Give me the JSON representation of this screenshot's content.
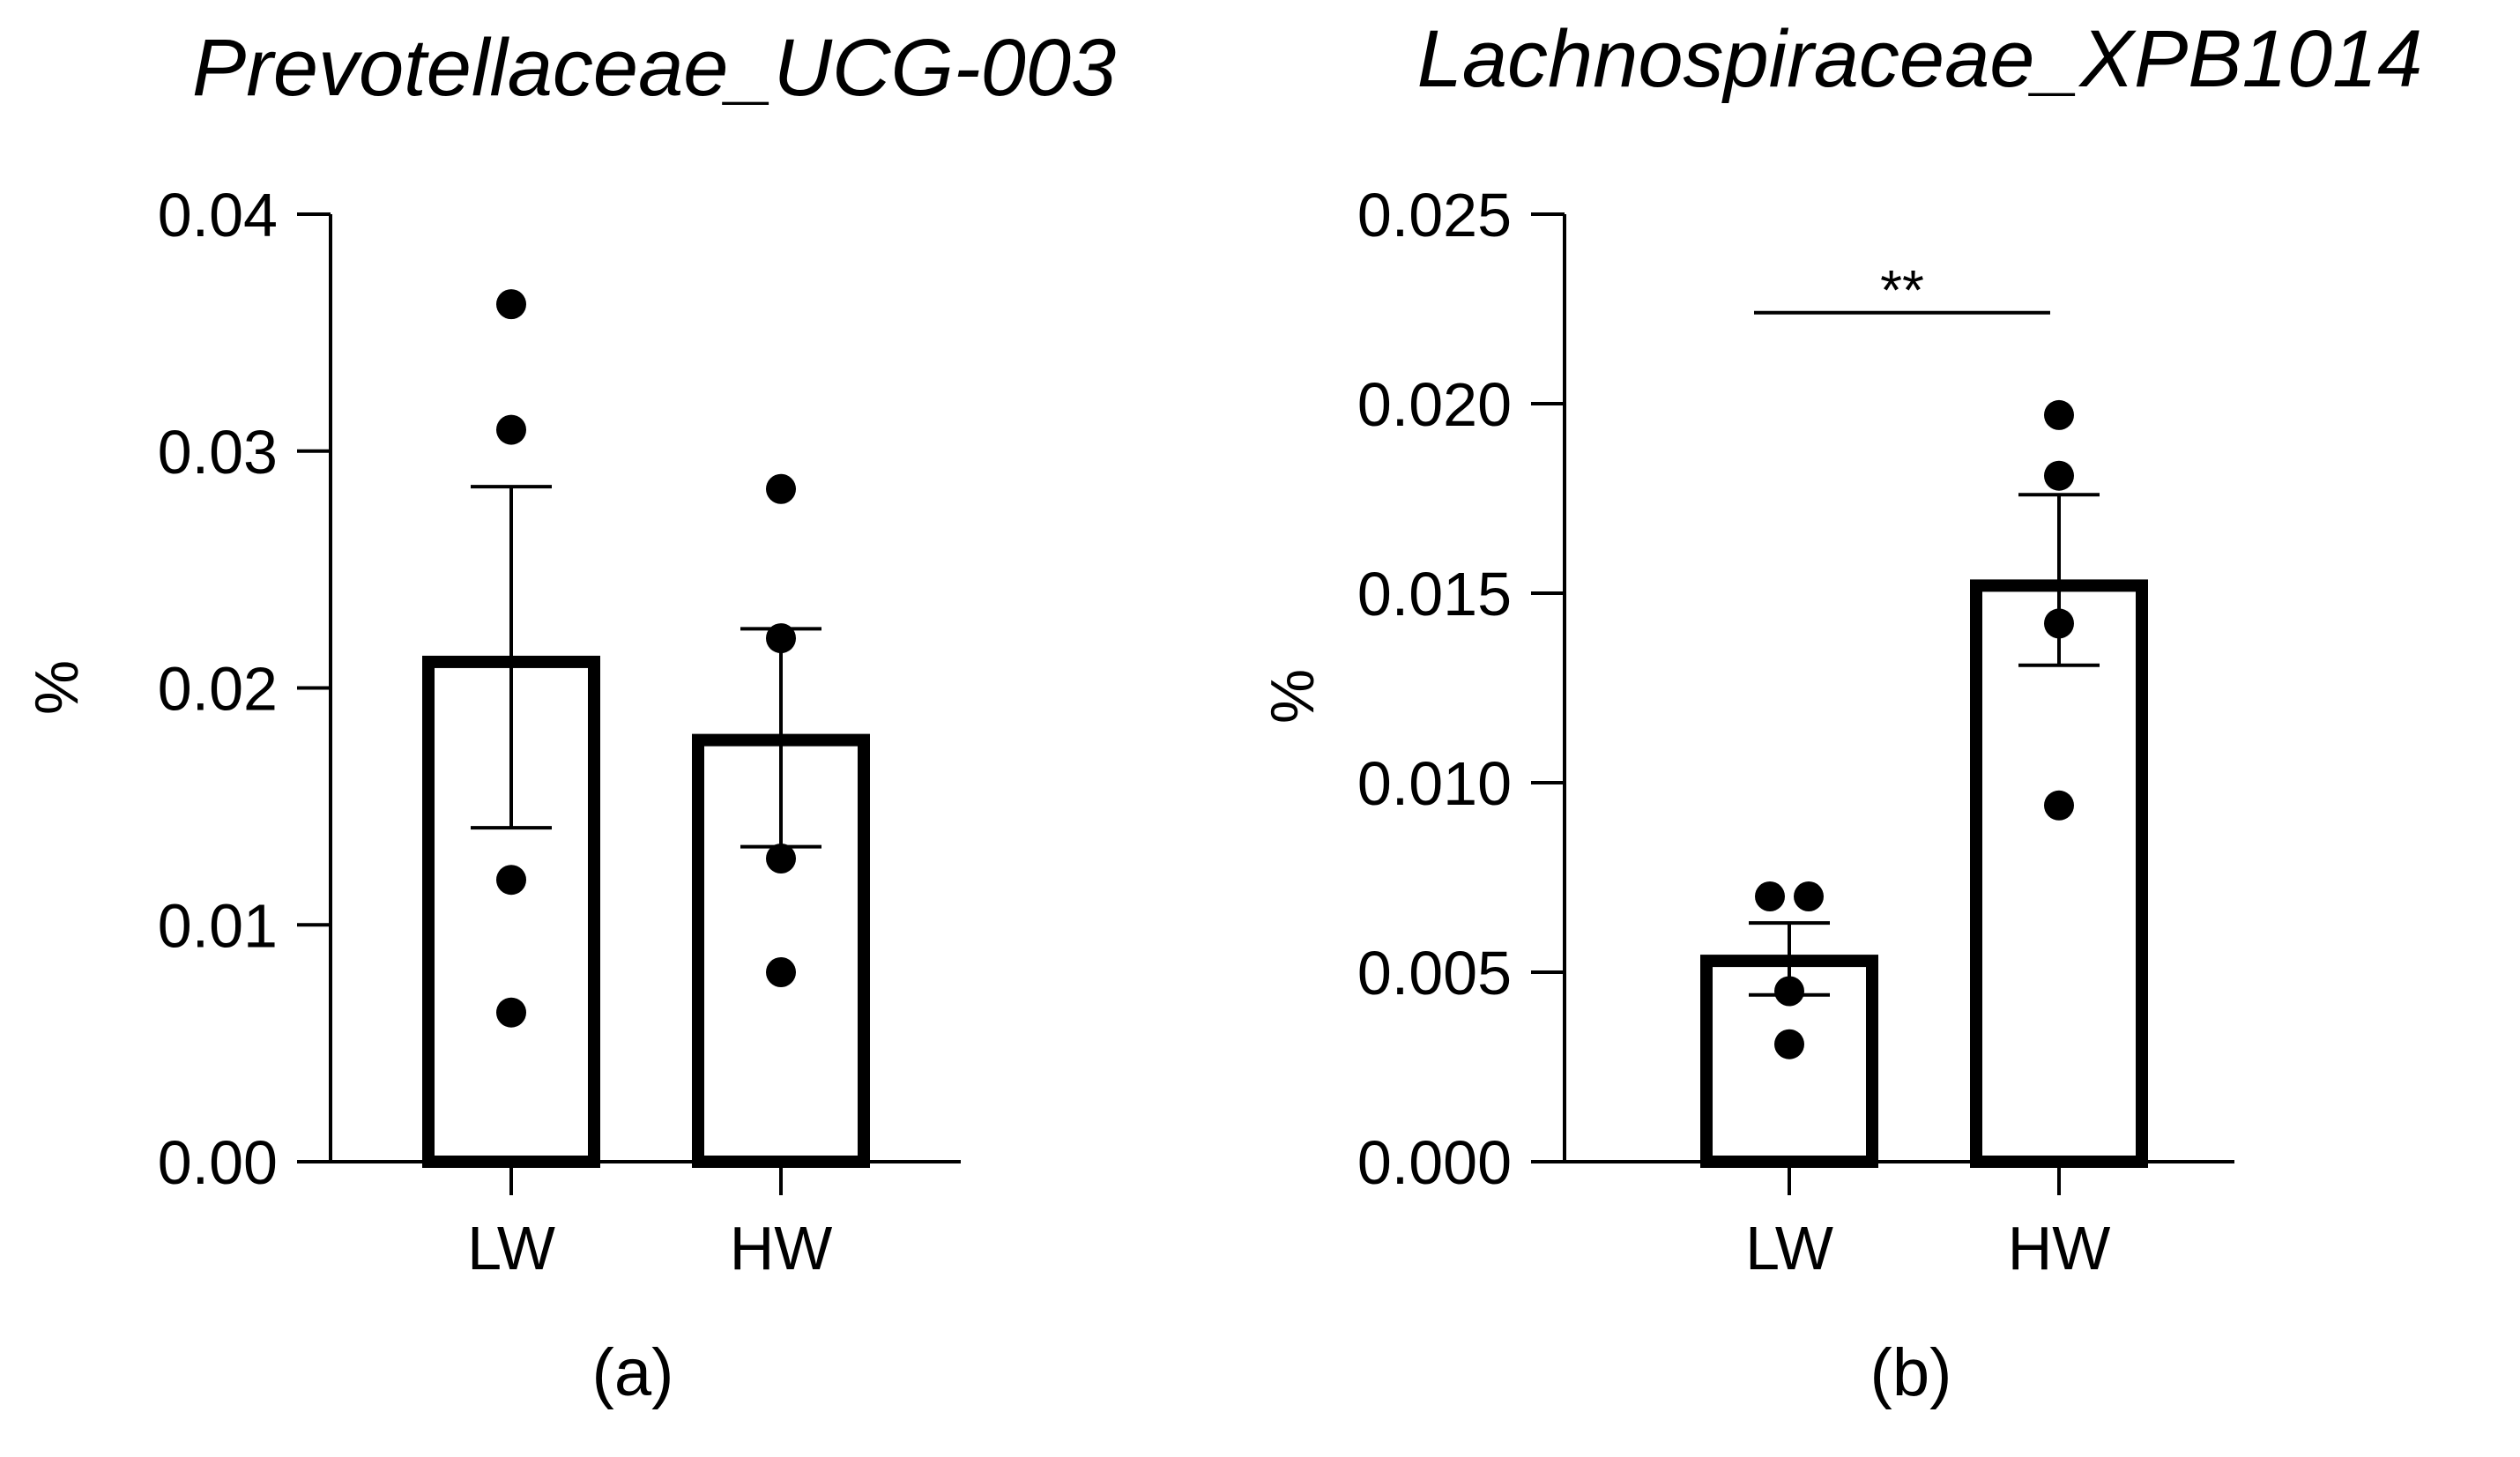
{
  "colors": {
    "ink": "#000000",
    "bar_fill": "#ffffff",
    "background": "#ffffff"
  },
  "chart_data": [
    {
      "type": "bar",
      "panel": "(a)",
      "title": "Prevotellaceae_UCG-003",
      "xlabel": "",
      "ylabel": "%",
      "ylim": [
        0,
        0.04
      ],
      "yticks": [
        0,
        0.01,
        0.02,
        0.03,
        0.04
      ],
      "ytick_labels": [
        "0.00",
        "0.01",
        "0.02",
        "0.03",
        "0.04"
      ],
      "categories": [
        "LW",
        "HW"
      ],
      "values": [
        0.0211,
        0.0178
      ],
      "error_upper": [
        0.0285,
        0.0225
      ],
      "error_lower": [
        0.0141,
        0.0133
      ],
      "points": [
        [
          0.0362,
          0.0309,
          0.0119,
          0.0063
        ],
        [
          0.0284,
          0.0221,
          0.0128,
          0.008
        ]
      ],
      "significance": null
    },
    {
      "type": "bar",
      "panel": "(b)",
      "title": "Lachnospiraceae_XPB1014",
      "xlabel": "",
      "ylabel": "%",
      "ylim": [
        0,
        0.025
      ],
      "yticks": [
        0,
        0.005,
        0.01,
        0.015,
        0.02,
        0.025
      ],
      "ytick_labels": [
        "0.000",
        "0.005",
        "0.010",
        "0.015",
        "0.020",
        "0.025"
      ],
      "categories": [
        "LW",
        "HW"
      ],
      "values": [
        0.0053,
        0.0152
      ],
      "error_upper": [
        0.0063,
        0.0176
      ],
      "error_lower": [
        0.0044,
        0.0131
      ],
      "points": [
        [
          0.007,
          0.007,
          0.0045,
          0.0031
        ],
        [
          0.0197,
          0.0181,
          0.0142,
          0.0094
        ]
      ],
      "significance": {
        "label": "**",
        "between": [
          0,
          1
        ],
        "y": 0.0224
      }
    }
  ]
}
